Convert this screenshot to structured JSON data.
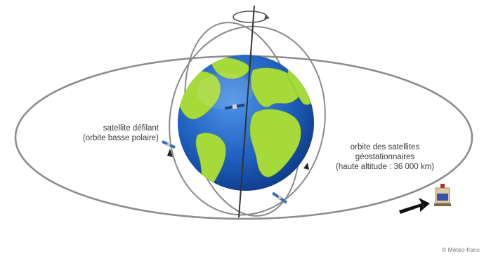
{
  "labels": {
    "polar_satellite": {
      "line1": "satellite défilant",
      "line2": "(orbite basse polaire)"
    },
    "geostationary_orbit": {
      "line1": "orbite des satellites",
      "line2": "géostationnaires",
      "line3": "(haute altitude : 36 000 km)"
    }
  },
  "credit": "© Météo-franc",
  "colors": {
    "ocean": "#1f5fbf",
    "land": "#a6d93a",
    "orbit": "#8a8a8a",
    "axis": "#333333"
  }
}
